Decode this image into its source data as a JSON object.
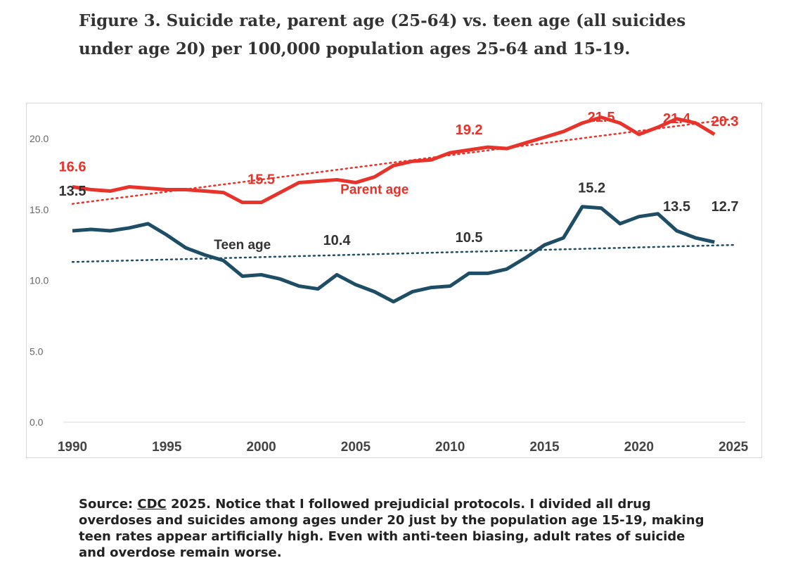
{
  "title_line1": "Figure 3. Suicide rate, parent age (25-64) vs. teen age (all suicides",
  "title_line2": "under age 20) per 100,000 population ages 25-64 and 15-19.",
  "source": {
    "prefix": "Source: ",
    "link": "CDC",
    "text": " 2025. Notice that I followed prejudicial protocols. I divided all drug overdoses and suicides among ages under 20 just by the population age 15-19, making teen rates appear artificially high. Even with anti-teen biasing, adult rates of suicide and overdose remain worse."
  },
  "chart_data": {
    "type": "line",
    "title": "Figure 3. Suicide rate, parent age (25-64) vs. teen age (all suicides under age 20) per 100,000 population ages 25-64 and 15-19.",
    "xlim": [
      1990,
      2025
    ],
    "ylim": [
      0,
      22
    ],
    "xticks": [
      "1990",
      "1995",
      "2000",
      "2005",
      "2010",
      "2015",
      "2020",
      "2025"
    ],
    "yticks": [
      "0.0",
      "5.0",
      "10.0",
      "15.0",
      "20.0"
    ],
    "x": [
      1990,
      1991,
      1992,
      1993,
      1994,
      1995,
      1996,
      1997,
      1998,
      1999,
      2000,
      2001,
      2002,
      2003,
      2004,
      2005,
      2006,
      2007,
      2008,
      2009,
      2010,
      2011,
      2012,
      2013,
      2014,
      2015,
      2016,
      2017,
      2018,
      2019,
      2020,
      2021,
      2022,
      2023,
      2024
    ],
    "series": [
      {
        "name": "Parent age",
        "color": "#e8332a",
        "values": [
          16.6,
          16.4,
          16.3,
          16.6,
          16.5,
          16.4,
          16.4,
          16.3,
          16.2,
          15.5,
          15.5,
          16.2,
          16.9,
          17.0,
          17.1,
          16.9,
          17.3,
          18.1,
          18.4,
          18.5,
          19.0,
          19.2,
          19.4,
          19.3,
          19.7,
          20.1,
          20.5,
          21.1,
          21.5,
          21.1,
          20.3,
          20.8,
          21.4,
          21.1,
          20.3
        ],
        "trend": [
          [
            1990,
            15.4
          ],
          [
            2025,
            21.4
          ]
        ],
        "labels": [
          {
            "year": 1990,
            "text": "16.6",
            "dy": -30
          },
          {
            "year": 2000,
            "text": "15.5",
            "dy": -34
          },
          {
            "year": 2011,
            "text": "19.2",
            "dy": -30
          },
          {
            "year": 2018,
            "text": "21.5",
            "dy": -2
          },
          {
            "year": 2022,
            "text": "21.4",
            "dy": -2
          },
          {
            "year": 2025,
            "text": "20.3",
            "dx": 0,
            "dy": -20,
            "yv": 20.3
          }
        ],
        "legend": {
          "text": "Parent age",
          "year": 2006,
          "value": 16.1
        }
      },
      {
        "name": "Teen age",
        "color": "#1e4d66",
        "values": [
          13.5,
          13.6,
          13.5,
          13.7,
          14.0,
          13.2,
          12.3,
          11.8,
          11.4,
          10.3,
          10.4,
          10.1,
          9.6,
          9.4,
          10.4,
          9.7,
          9.2,
          8.5,
          9.2,
          9.5,
          9.6,
          10.5,
          10.5,
          10.8,
          11.6,
          12.5,
          13.0,
          15.2,
          15.1,
          14.0,
          14.5,
          14.7,
          13.5,
          13.0,
          12.7
        ],
        "trend": [
          [
            1990,
            11.3
          ],
          [
            2025,
            12.5
          ]
        ],
        "labels": [
          {
            "year": 1990,
            "text": "13.5",
            "dy": -28,
            "yv": 15.0
          },
          {
            "year": 2004,
            "text": "10.4",
            "dy": -24,
            "yv": 11.7
          },
          {
            "year": 2011,
            "text": "10.5",
            "dy": -24,
            "yv": 11.9
          },
          {
            "year": 2017.5,
            "text": "15.2",
            "dy": -30
          },
          {
            "year": 2022,
            "text": "13.5",
            "dy": -22,
            "yv": 14.2
          },
          {
            "year": 2025,
            "text": "12.7",
            "dy": -24,
            "yv": 14.1
          }
        ],
        "legend": {
          "text": "Teen age",
          "year": 1999,
          "value": 12.2
        }
      }
    ]
  }
}
